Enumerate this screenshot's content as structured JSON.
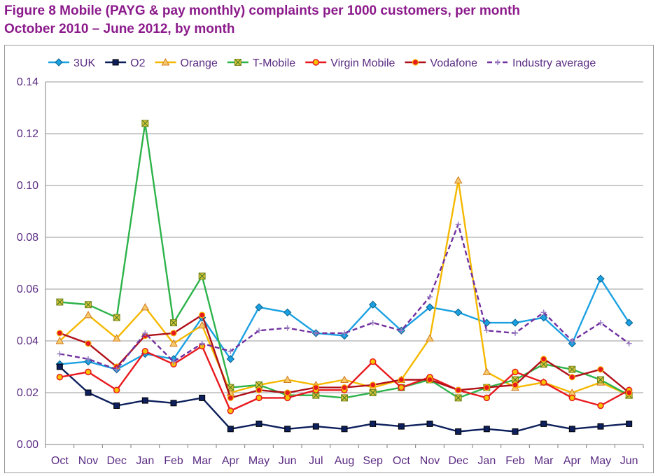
{
  "figure": {
    "title_line1": "Figure 8 Mobile (PAYG & pay monthly) complaints per 1000 customers, per month",
    "title_line2": "October 2010 – June 2012, by month"
  },
  "colors": {
    "title": "#8B1A8B",
    "axis_text": "#5B2C83",
    "grid": "#9a9a9a"
  },
  "chart_data": {
    "type": "line",
    "title": "Mobile (PAYG & pay monthly) complaints per 1000 customers, per month",
    "xlabel": "",
    "ylabel": "",
    "ylim": [
      0,
      0.14
    ],
    "yticks": [
      "0.00",
      "0.02",
      "0.04",
      "0.06",
      "0.08",
      "0.10",
      "0.12",
      "0.14"
    ],
    "grid": true,
    "legend_position": "top",
    "categories": [
      "Oct",
      "Nov",
      "Dec",
      "Jan",
      "Feb",
      "Mar",
      "Apr",
      "May",
      "Jun",
      "Jul",
      "Aug",
      "Sep",
      "Oct",
      "Nov",
      "Dec",
      "Jan",
      "Feb",
      "Mar",
      "Apr",
      "May",
      "Jun"
    ],
    "series": [
      {
        "name": "3UK",
        "color": "#1BA1E2",
        "marker": "diamond",
        "dashed": false,
        "values": [
          0.031,
          0.032,
          0.029,
          0.035,
          0.033,
          0.049,
          0.033,
          0.053,
          0.051,
          0.043,
          0.042,
          0.054,
          0.044,
          0.053,
          0.051,
          0.047,
          0.047,
          0.049,
          0.039,
          0.064,
          0.047
        ]
      },
      {
        "name": "O2",
        "color": "#0D1F5C",
        "marker": "square",
        "dashed": false,
        "values": [
          0.03,
          0.02,
          0.015,
          0.017,
          0.016,
          0.018,
          0.006,
          0.008,
          0.006,
          0.007,
          0.006,
          0.008,
          0.007,
          0.008,
          0.005,
          0.006,
          0.005,
          0.008,
          0.006,
          0.007,
          0.008
        ]
      },
      {
        "name": "Orange",
        "color": "#F5B800",
        "marker": "triangle",
        "dashed": false,
        "values": [
          0.04,
          0.05,
          0.041,
          0.053,
          0.039,
          0.046,
          0.02,
          0.023,
          0.025,
          0.023,
          0.025,
          0.022,
          0.025,
          0.041,
          0.102,
          0.028,
          0.022,
          0.024,
          0.02,
          0.024,
          0.019
        ]
      },
      {
        "name": "T-Mobile",
        "color": "#2DB34A",
        "marker": "square-x",
        "dashed": false,
        "values": [
          0.055,
          0.054,
          0.049,
          0.124,
          0.047,
          0.065,
          0.022,
          0.023,
          0.019,
          0.019,
          0.018,
          0.02,
          0.022,
          0.025,
          0.018,
          0.022,
          0.025,
          0.031,
          0.029,
          0.025,
          0.019
        ]
      },
      {
        "name": "Virgin Mobile",
        "color": "#E8191E",
        "marker": "circle-yellow",
        "dashed": false,
        "values": [
          0.026,
          0.028,
          0.021,
          0.036,
          0.031,
          0.038,
          0.013,
          0.018,
          0.018,
          0.021,
          0.021,
          0.032,
          0.022,
          0.026,
          0.021,
          0.018,
          0.028,
          0.024,
          0.018,
          0.015,
          0.021
        ]
      },
      {
        "name": "Vodafone",
        "color": "#B01018",
        "marker": "circle-red",
        "dashed": false,
        "values": [
          0.043,
          0.039,
          0.03,
          0.042,
          0.043,
          0.05,
          0.018,
          0.021,
          0.02,
          0.022,
          0.022,
          0.023,
          0.025,
          0.025,
          0.021,
          0.022,
          0.023,
          0.033,
          0.026,
          0.029,
          0.02
        ]
      },
      {
        "name": "Industry average",
        "color": "#7030A0",
        "marker": "plus",
        "dashed": true,
        "values": [
          0.035,
          0.033,
          0.029,
          0.043,
          0.032,
          0.039,
          0.036,
          0.044,
          0.045,
          0.043,
          0.043,
          0.047,
          0.044,
          0.057,
          0.085,
          0.044,
          0.043,
          0.051,
          0.04,
          0.047,
          0.039
        ]
      }
    ]
  }
}
